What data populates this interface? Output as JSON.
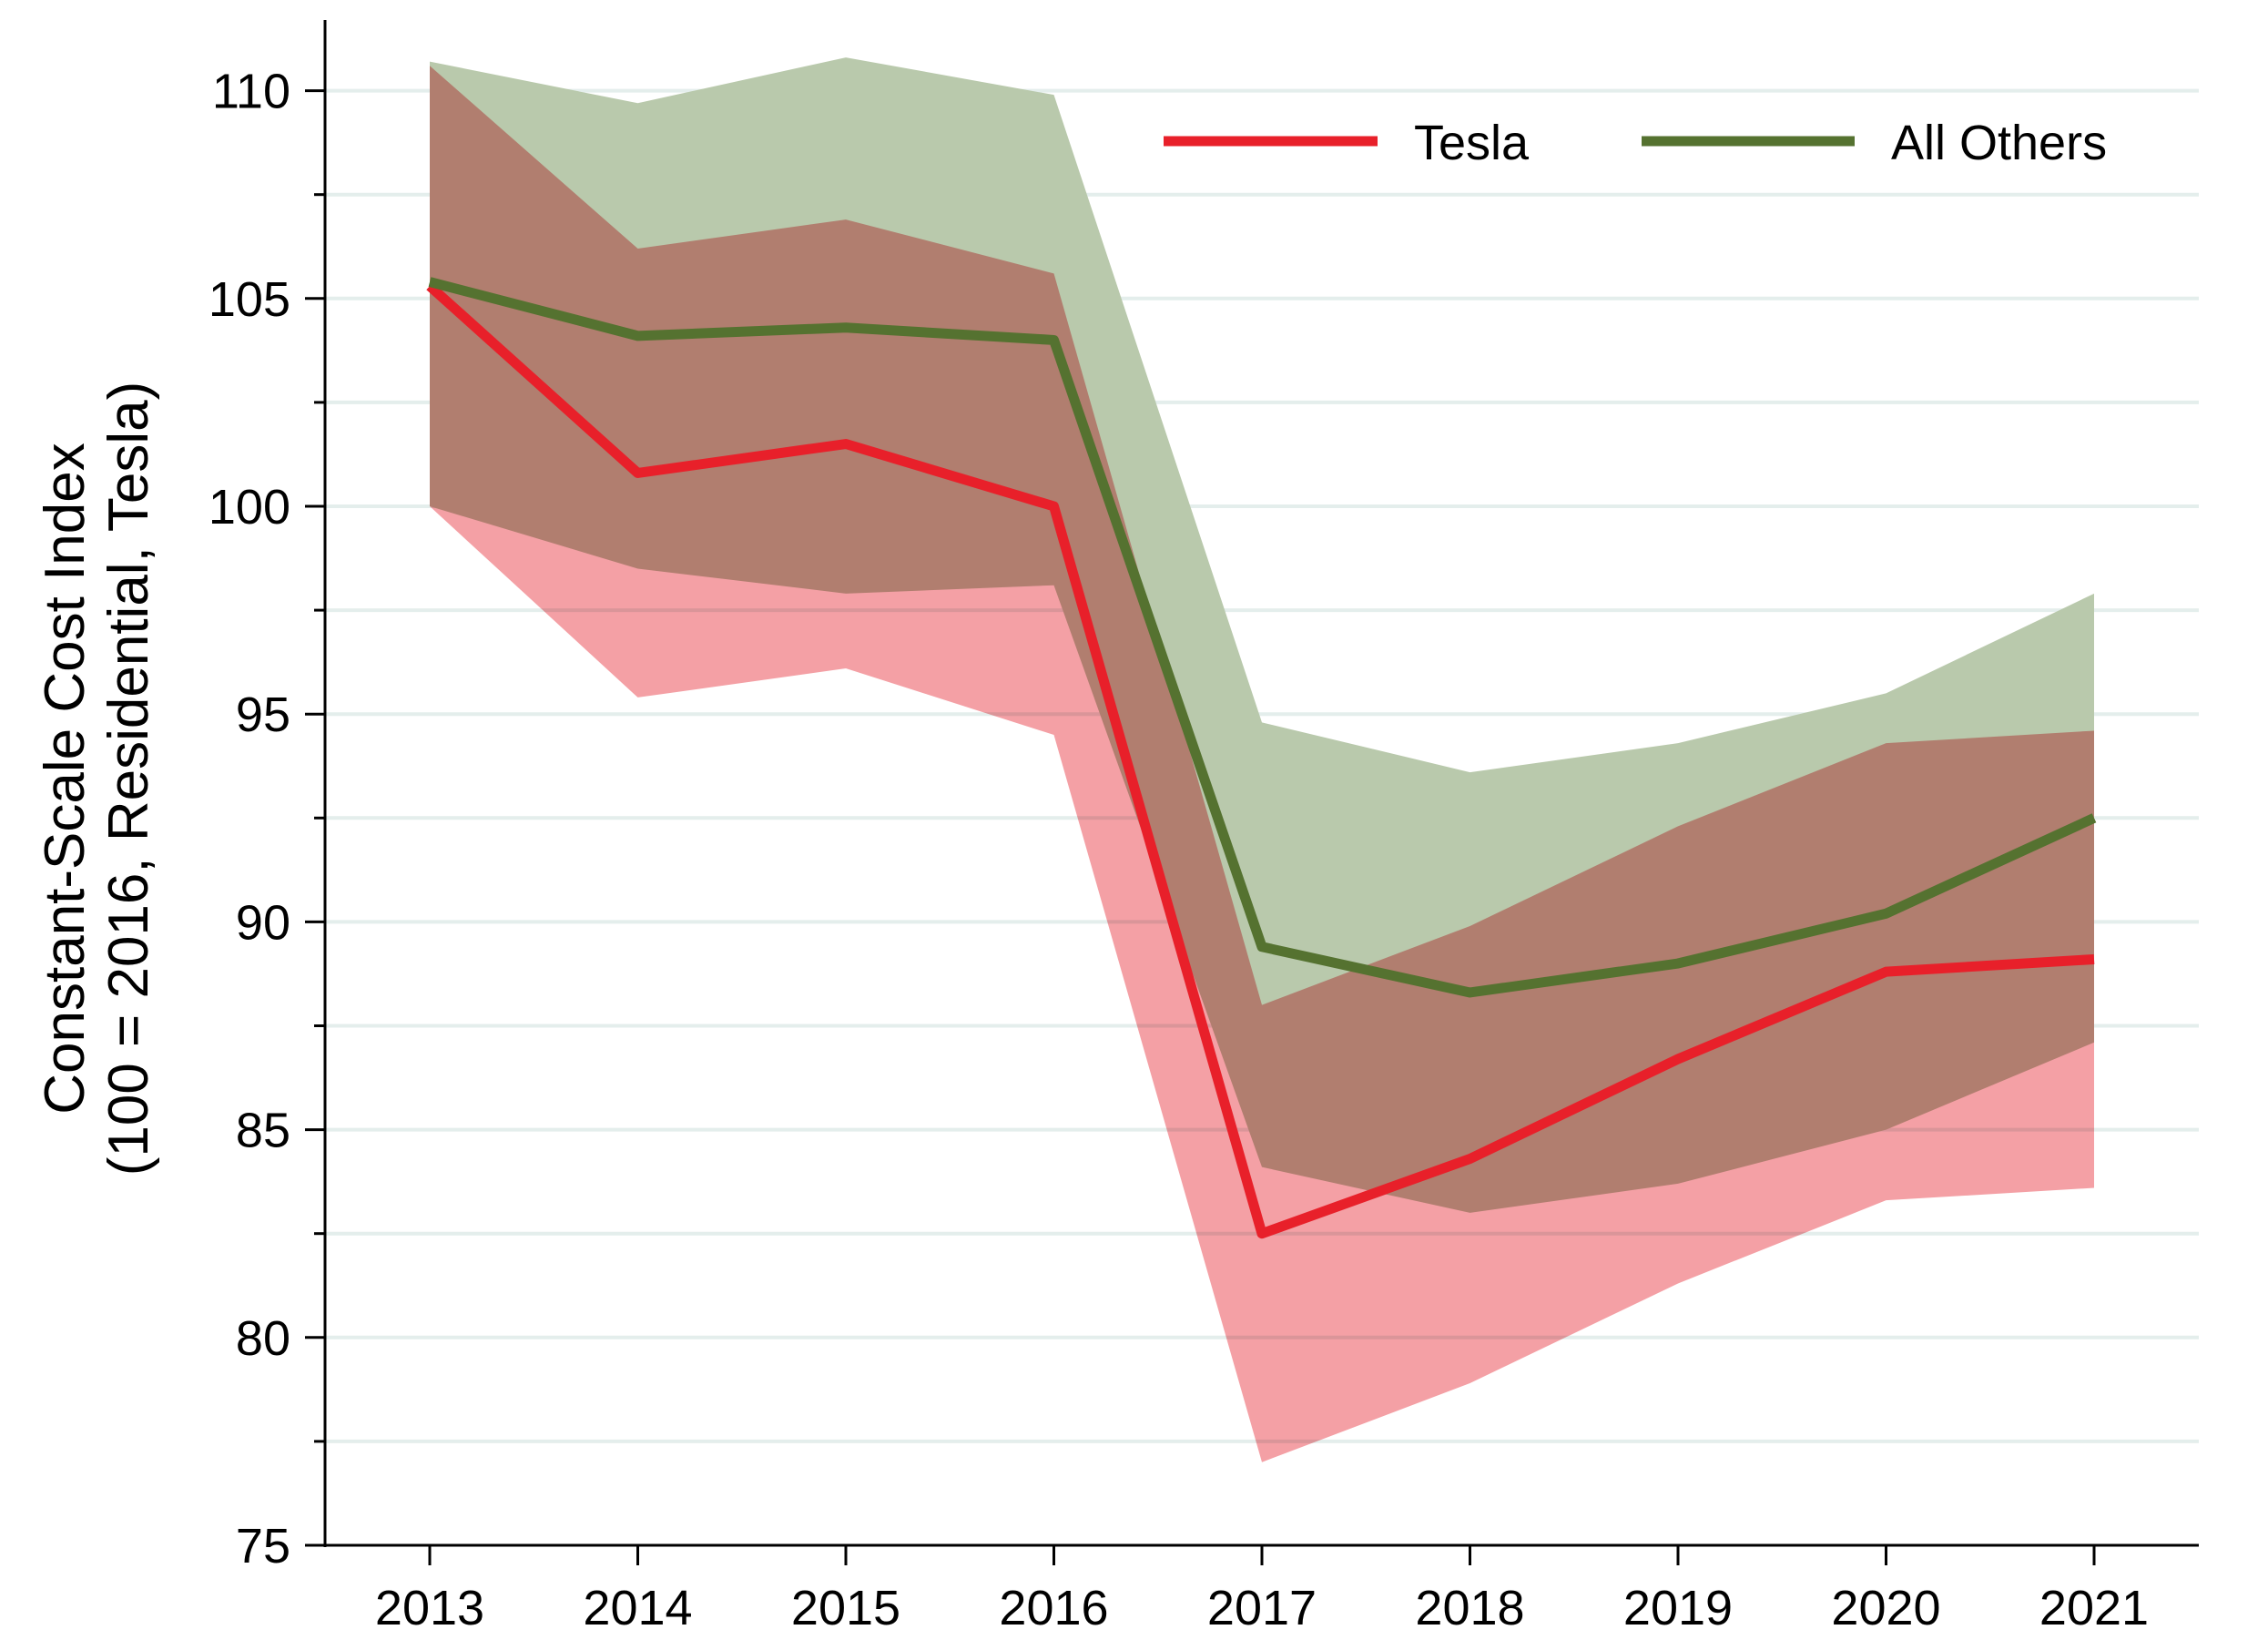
{
  "chart_data": {
    "type": "area",
    "title": "",
    "xlabel": "",
    "ylabel_line1": "Constant-Scale Cost Index",
    "ylabel_line2": "(100 = 2016, Residential, Tesla)",
    "x": [
      2013,
      2014,
      2015,
      2016,
      2017,
      2018,
      2019,
      2020,
      2021
    ],
    "x_tick_labels": [
      "2013",
      "2014",
      "2015",
      "2016",
      "2017",
      "2018",
      "2019",
      "2020",
      "2021"
    ],
    "ylim": [
      75,
      111.7
    ],
    "y_ticks": [
      75,
      80,
      85,
      90,
      95,
      100,
      105,
      110
    ],
    "y_tick_labels": [
      "75",
      "80",
      "85",
      "90",
      "95",
      "100",
      "105",
      "110"
    ],
    "y_minor_ticks": [
      77.5,
      82.5,
      87.5,
      92.5,
      97.5,
      102.5,
      107.5
    ],
    "grid": true,
    "legend_position": "top-right",
    "series": [
      {
        "name": "Tesla",
        "color": "#e8202a",
        "band_color": "#f4a0a5",
        "values": [
          105.3,
          100.8,
          101.5,
          100.0,
          82.5,
          84.3,
          86.7,
          88.8,
          89.1
        ],
        "lower": [
          100.0,
          95.4,
          96.1,
          94.5,
          77.0,
          78.9,
          81.3,
          83.3,
          83.6
        ],
        "upper": [
          110.6,
          106.2,
          106.9,
          105.6,
          88.0,
          89.9,
          92.3,
          94.3,
          94.6
        ]
      },
      {
        "name": "All Others",
        "color": "#557230",
        "band_color": "#b9c9ac",
        "values": [
          105.4,
          104.1,
          104.3,
          104.0,
          89.4,
          88.3,
          89.0,
          90.2,
          92.5
        ],
        "lower": [
          100.0,
          98.5,
          97.9,
          98.1,
          84.1,
          83.0,
          83.7,
          85.0,
          87.1
        ],
        "upper": [
          110.7,
          109.7,
          110.8,
          109.9,
          94.8,
          93.6,
          94.3,
          95.5,
          97.9
        ]
      }
    ]
  }
}
